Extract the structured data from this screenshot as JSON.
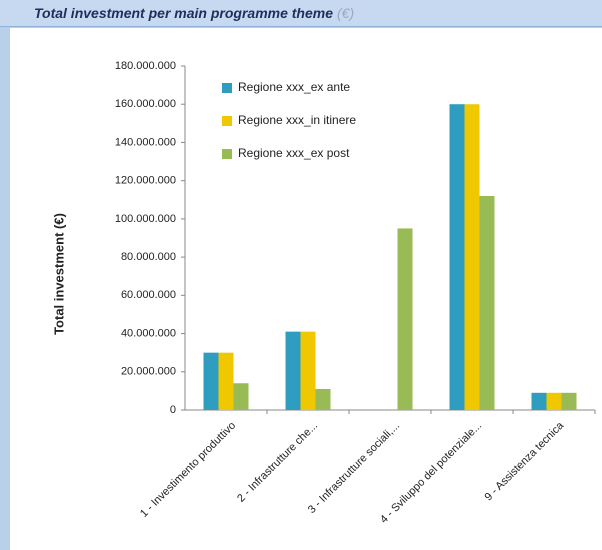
{
  "chart_data": {
    "type": "bar",
    "title": "Total investment per main programme theme",
    "title_unit": "(€)",
    "y_label": "Total investment  (€)",
    "categories": [
      "1 - Investimento produttivo",
      "2 - Infrastrutture che...",
      "3 - Infrastrutture sociali,...",
      "4 - Sviluppo del potenziale...",
      "9 - Assistenza tecnica"
    ],
    "series": [
      {
        "name": "Regione xxx_ex ante",
        "color": "#2e9dc0",
        "values": [
          30000000,
          41000000,
          0,
          160000000,
          9000000
        ]
      },
      {
        "name": "Regione xxx_in itinere",
        "color": "#f0c800",
        "values": [
          30000000,
          41000000,
          0,
          160000000,
          9000000
        ]
      },
      {
        "name": "Regione xxx_ex post",
        "color": "#99bb55",
        "values": [
          14000000,
          11000000,
          95000000,
          112000000,
          9000000
        ]
      }
    ],
    "ylim": [
      0,
      180000000
    ],
    "yticks": [
      0,
      {
        "value": 20000000,
        "label": "20.000.000"
      },
      {
        "value": 40000000,
        "label": "40.000.000"
      },
      {
        "value": 60000000,
        "label": "60.000.000"
      },
      {
        "value": 80000000,
        "label": "80.000.000"
      },
      {
        "value": 100000000,
        "label": "100.000.000"
      },
      {
        "value": 120000000,
        "label": "120.000.000"
      },
      {
        "value": 140000000,
        "label": "140.000.000"
      },
      {
        "value": 160000000,
        "label": "160.000.000"
      },
      {
        "value": 180000000,
        "label": "180.000.000"
      }
    ],
    "grid": false,
    "legend": "top-left"
  }
}
